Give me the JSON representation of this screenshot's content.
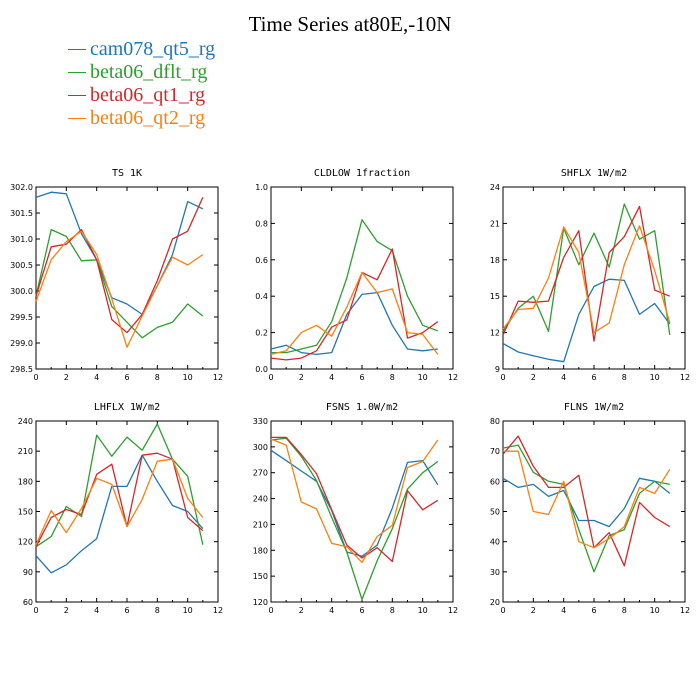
{
  "figure": {
    "title": "Time Series at80E,-10N"
  },
  "legend": [
    {
      "name": "cam078_qt5_rg",
      "color": "#1f77b4"
    },
    {
      "name": "beta06_dflt_rg",
      "color": "#2ca02c"
    },
    {
      "name": "beta06_qt1_rg",
      "color": "#d62728"
    },
    {
      "name": "beta06_qt2_rg",
      "color": "#ff7f0e"
    }
  ],
  "chart_data": [
    {
      "type": "line",
      "title": "TS   1K",
      "xlim": [
        0,
        12
      ],
      "xticks": [
        0,
        2,
        4,
        6,
        8,
        10,
        12
      ],
      "ylim": [
        298.5,
        302.0
      ],
      "yticks": [
        "298.5",
        "299.0",
        "299.5",
        "300.0",
        "300.5",
        "301.0",
        "301.5",
        "302.0"
      ],
      "x": [
        0,
        1,
        2,
        3,
        4,
        5,
        6,
        7,
        8,
        9,
        10,
        11
      ],
      "series": [
        {
          "name": "cam078_qt5_rg",
          "values": [
            301.8,
            301.9,
            301.87,
            301.1,
            300.6,
            299.87,
            299.75,
            299.55,
            300.1,
            300.7,
            301.72,
            301.58
          ]
        },
        {
          "name": "beta06_dflt_rg",
          "values": [
            299.9,
            301.18,
            301.05,
            300.58,
            300.6,
            299.7,
            299.4,
            299.1,
            299.3,
            299.4,
            299.75,
            299.52
          ]
        },
        {
          "name": "beta06_qt1_rg",
          "values": [
            299.9,
            300.85,
            300.9,
            301.18,
            300.6,
            299.45,
            299.2,
            299.55,
            300.2,
            301.0,
            301.15,
            301.8
          ]
        },
        {
          "name": "beta06_qt2_rg",
          "values": [
            299.8,
            300.6,
            300.95,
            301.15,
            300.7,
            299.85,
            298.92,
            299.52,
            300.1,
            300.65,
            300.5,
            300.7
          ]
        }
      ]
    },
    {
      "type": "line",
      "title": "CLDLOW   1fraction",
      "xlim": [
        0,
        12
      ],
      "xticks": [
        0,
        2,
        4,
        6,
        8,
        10,
        12
      ],
      "ylim": [
        0,
        1
      ],
      "yticks": [
        "0.0",
        "0.2",
        "0.4",
        "0.6",
        "0.8",
        "1.0"
      ],
      "x": [
        0,
        1,
        2,
        3,
        4,
        5,
        6,
        7,
        8,
        9,
        10,
        11
      ],
      "series": [
        {
          "name": "cam078_qt5_rg",
          "values": [
            0.11,
            0.13,
            0.09,
            0.08,
            0.09,
            0.3,
            0.41,
            0.42,
            0.24,
            0.11,
            0.1,
            0.11
          ]
        },
        {
          "name": "beta06_dflt_rg",
          "values": [
            0.09,
            0.09,
            0.11,
            0.13,
            0.26,
            0.5,
            0.82,
            0.7,
            0.65,
            0.4,
            0.24,
            0.21
          ]
        },
        {
          "name": "beta06_qt1_rg",
          "values": [
            0.06,
            0.05,
            0.06,
            0.1,
            0.23,
            0.27,
            0.53,
            0.49,
            0.66,
            0.17,
            0.2,
            0.26
          ]
        },
        {
          "name": "beta06_qt2_rg",
          "values": [
            0.08,
            0.1,
            0.2,
            0.24,
            0.18,
            0.34,
            0.53,
            0.42,
            0.44,
            0.2,
            0.19,
            0.08
          ]
        }
      ]
    },
    {
      "type": "line",
      "title": "SHFLX   1W/m2",
      "xlim": [
        0,
        12
      ],
      "xticks": [
        0,
        2,
        4,
        6,
        8,
        10,
        12
      ],
      "ylim": [
        9,
        24
      ],
      "yticks": [
        "9",
        "12",
        "15",
        "18",
        "21",
        "24"
      ],
      "x": [
        0,
        1,
        2,
        3,
        4,
        5,
        6,
        7,
        8,
        9,
        10,
        11
      ],
      "series": [
        {
          "name": "cam078_qt5_rg",
          "values": [
            11.1,
            10.4,
            10.1,
            9.8,
            9.6,
            13.5,
            15.8,
            16.4,
            16.3,
            13.5,
            14.4,
            12.7
          ]
        },
        {
          "name": "beta06_dflt_rg",
          "values": [
            12.1,
            14.0,
            15.0,
            12.1,
            20.6,
            17.6,
            20.2,
            17.4,
            22.6,
            19.7,
            20.4,
            11.8
          ]
        },
        {
          "name": "beta06_qt1_rg",
          "values": [
            11.8,
            14.6,
            14.5,
            14.6,
            18.2,
            20.4,
            11.3,
            18.6,
            19.9,
            22.4,
            15.5,
            15.0
          ]
        },
        {
          "name": "beta06_qt2_rg",
          "values": [
            12.3,
            13.9,
            14.0,
            16.5,
            20.7,
            18.6,
            12.0,
            12.8,
            17.6,
            20.8,
            17.1,
            12.8
          ]
        }
      ]
    },
    {
      "type": "line",
      "title": "LHFLX   1W/m2",
      "xlim": [
        0,
        12
      ],
      "xticks": [
        0,
        2,
        4,
        6,
        8,
        10,
        12
      ],
      "ylim": [
        60,
        240
      ],
      "yticks": [
        "60",
        "90",
        "120",
        "150",
        "180",
        "210",
        "240"
      ],
      "x": [
        0,
        1,
        2,
        3,
        4,
        5,
        6,
        7,
        8,
        9,
        10,
        11
      ],
      "series": [
        {
          "name": "cam078_qt5_rg",
          "values": [
            106,
            89,
            97,
            111,
            123,
            175,
            175,
            206,
            180,
            156,
            150,
            133
          ]
        },
        {
          "name": "beta06_dflt_rg",
          "values": [
            115,
            125,
            155,
            145,
            226,
            205,
            224,
            211,
            237,
            202,
            185,
            117
          ]
        },
        {
          "name": "beta06_qt1_rg",
          "values": [
            115,
            144,
            152,
            147,
            187,
            197,
            135,
            206,
            208,
            202,
            144,
            131
          ]
        },
        {
          "name": "beta06_qt2_rg",
          "values": [
            117,
            151,
            129,
            153,
            183,
            177,
            135,
            162,
            200,
            202,
            163,
            144
          ]
        }
      ]
    },
    {
      "type": "line",
      "title": "FSNS   1.0W/m2",
      "xlim": [
        0,
        12
      ],
      "xticks": [
        0,
        2,
        4,
        6,
        8,
        10,
        12
      ],
      "ylim": [
        120,
        330
      ],
      "yticks": [
        "120",
        "150",
        "180",
        "210",
        "240",
        "270",
        "300",
        "330"
      ],
      "x": [
        0,
        1,
        2,
        3,
        4,
        5,
        6,
        7,
        8,
        9,
        10,
        11
      ],
      "series": [
        {
          "name": "cam078_qt5_rg",
          "values": [
            296,
            284,
            272,
            260,
            226,
            178,
            173,
            186,
            229,
            282,
            284,
            256
          ]
        },
        {
          "name": "beta06_dflt_rg",
          "values": [
            308,
            310,
            289,
            261,
            218,
            178,
            123,
            168,
            205,
            251,
            270,
            283
          ]
        },
        {
          "name": "beta06_qt1_rg",
          "values": [
            311,
            311,
            291,
            269,
            227,
            186,
            171,
            183,
            167,
            249,
            227,
            238
          ]
        },
        {
          "name": "beta06_qt2_rg",
          "values": [
            309,
            302,
            236,
            228,
            188,
            184,
            166,
            196,
            209,
            276,
            283,
            308
          ]
        }
      ]
    },
    {
      "type": "line",
      "title": "FLNS   1W/m2",
      "xlim": [
        0,
        12
      ],
      "xticks": [
        0,
        2,
        4,
        6,
        8,
        10,
        12
      ],
      "ylim": [
        20,
        80
      ],
      "yticks": [
        "20",
        "30",
        "40",
        "50",
        "60",
        "70",
        "80"
      ],
      "x": [
        0,
        1,
        2,
        3,
        4,
        5,
        6,
        7,
        8,
        9,
        10,
        11
      ],
      "series": [
        {
          "name": "cam078_qt5_rg",
          "values": [
            61,
            58,
            59,
            55,
            57,
            47,
            47,
            45,
            51,
            61,
            60,
            56
          ]
        },
        {
          "name": "beta06_dflt_rg",
          "values": [
            71,
            72,
            63,
            60,
            59,
            44,
            30,
            42,
            44,
            56,
            60,
            59
          ]
        },
        {
          "name": "beta06_qt1_rg",
          "values": [
            69,
            75,
            65,
            58,
            58,
            62,
            38,
            43,
            32,
            53,
            48,
            45
          ]
        },
        {
          "name": "beta06_qt2_rg",
          "values": [
            70,
            70,
            50,
            49,
            60,
            40,
            38,
            41,
            45,
            58,
            56,
            64
          ]
        }
      ]
    }
  ]
}
